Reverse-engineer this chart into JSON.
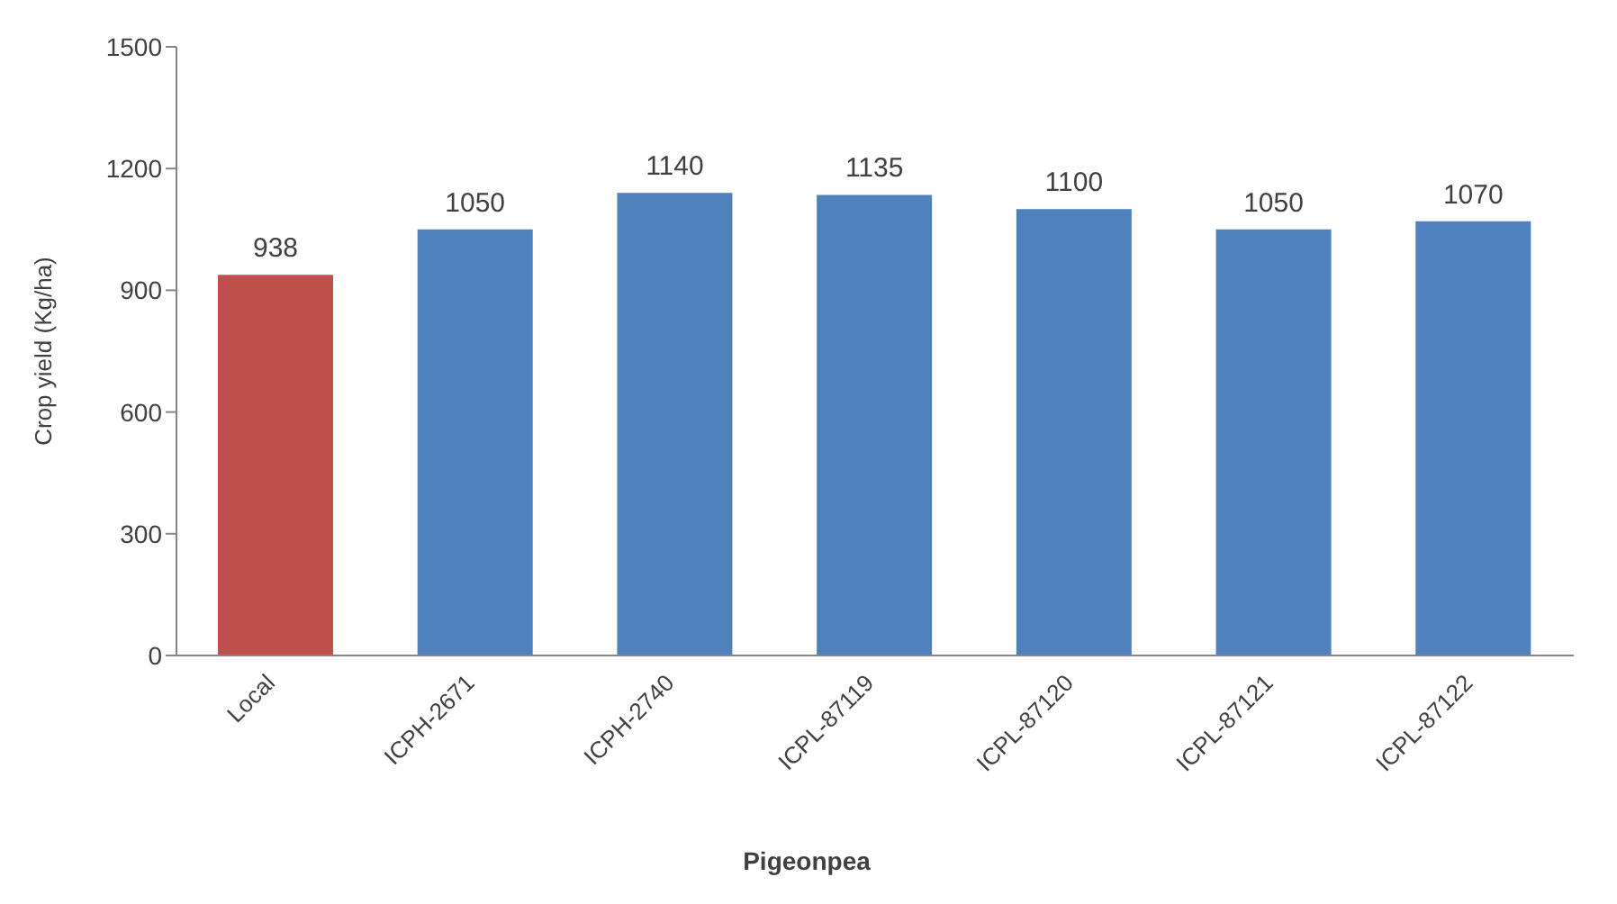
{
  "chart_data": {
    "type": "bar",
    "xlabel": "Pigeonpea",
    "ylabel": "Crop yield (Kg/ha)",
    "categories": [
      "Local",
      "ICPH-2671",
      "ICPH-2740",
      "ICPL-87119",
      "ICPL-87120",
      "ICPL-87121",
      "ICPL-87122"
    ],
    "values": [
      938,
      1050,
      1140,
      1135,
      1100,
      1050,
      1070
    ],
    "colors": [
      "#c0504d",
      "#4f81bd",
      "#4f81bd",
      "#4f81bd",
      "#4f81bd",
      "#4f81bd",
      "#4f81bd"
    ],
    "ylim": [
      0,
      1500
    ],
    "yticks": [
      0,
      300,
      600,
      900,
      1200,
      1500
    ],
    "data_labels": true
  }
}
